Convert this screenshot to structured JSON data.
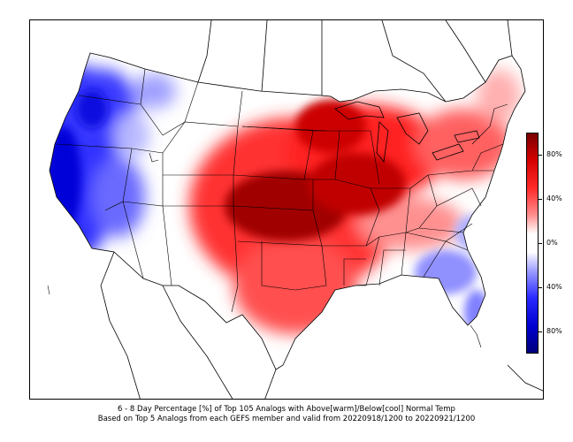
{
  "colorbar": {
    "ticks": [
      "80%",
      "40%",
      "0%",
      "40%",
      "80%"
    ],
    "colors": {
      "top": "#7a0000",
      "upper": "#ff2a2a",
      "mid": "#ffffff",
      "lower": "#2a2aff",
      "bottom": "#00007a"
    }
  },
  "caption": {
    "line1": "6 - 8 Day Percentage [%] of Top 105 Analogs with Above[warm]/Below[cool] Normal Temp",
    "line2": "Based on Top 5 Analogs from each GEFS member and valid from 20220918/1200 to 20220921/1200"
  },
  "colors": {
    "warm": "#e00000",
    "warm_dark": "#a00000",
    "cool": "#0000e0",
    "cool_light": "#8080ff"
  }
}
